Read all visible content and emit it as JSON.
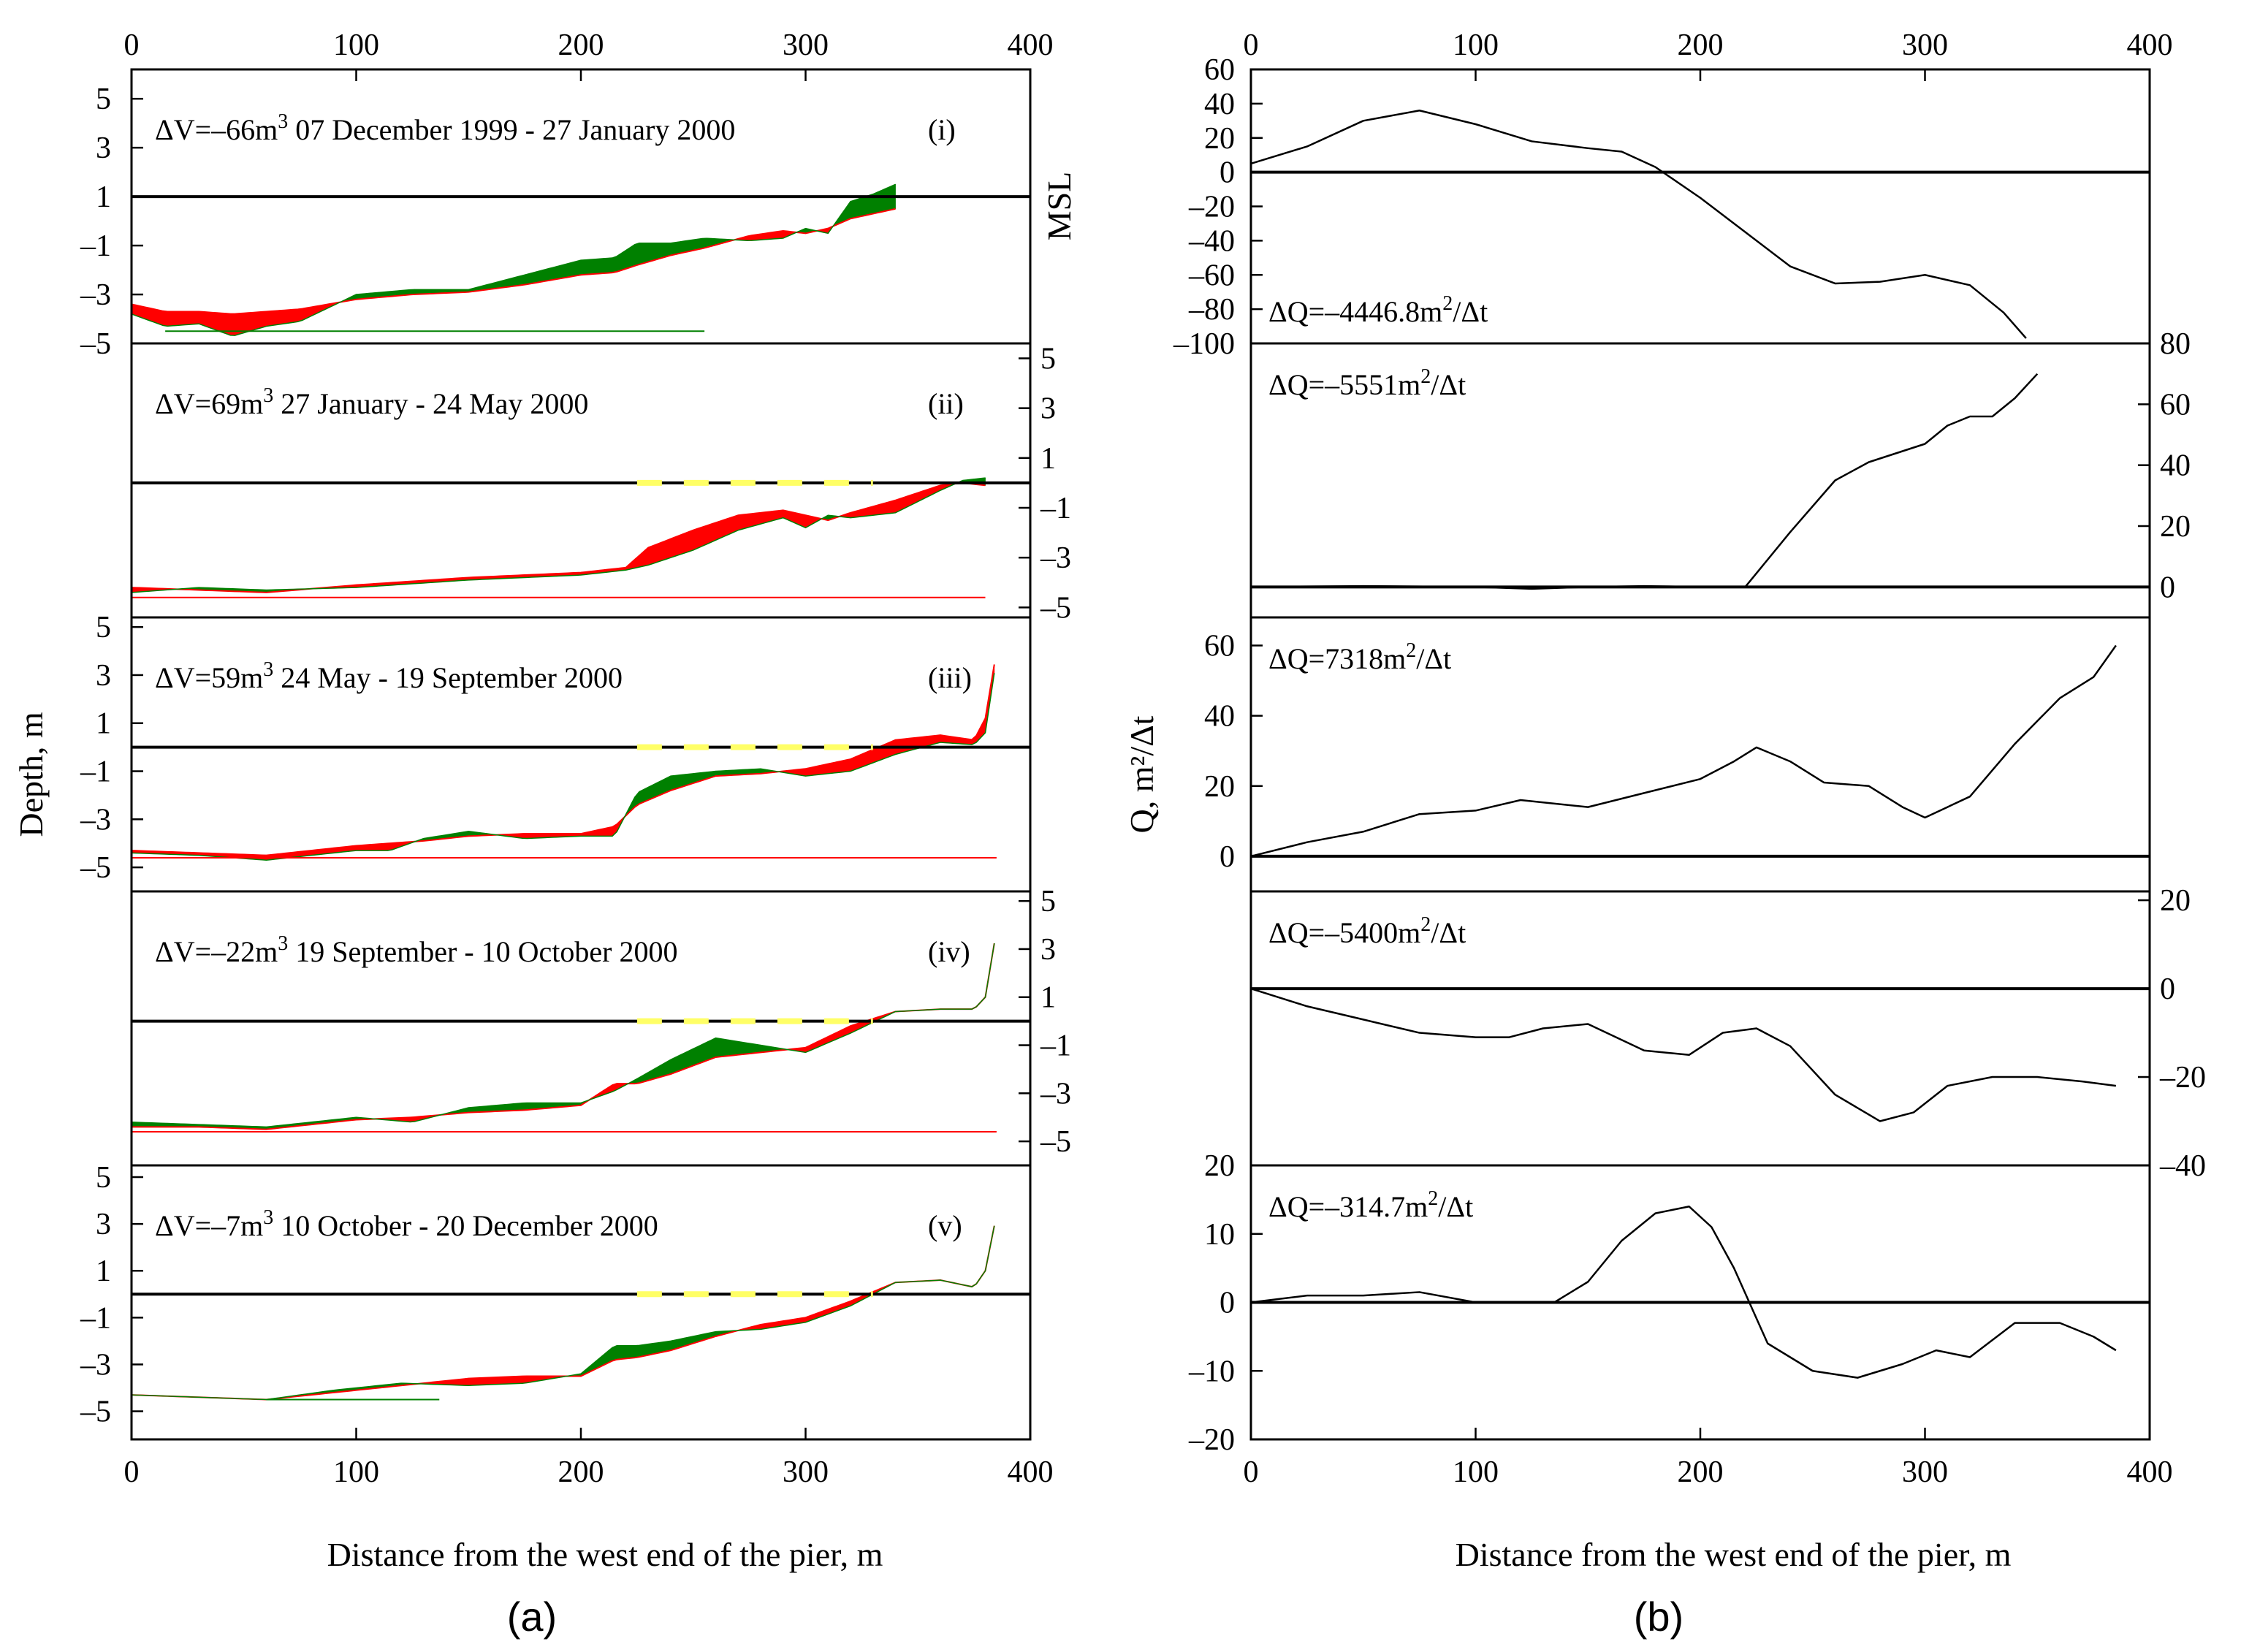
{
  "figure": {
    "label_a": "(a)",
    "label_b": "(b)",
    "xlabel_a": "Distance from the west end of the pier, m",
    "xlabel_b": "Distance from the west end of the pier, m",
    "ylabel_a": "Depth, m",
    "ylabel_b": "Q, m²/Δt",
    "msl_label": "MSL"
  },
  "colors": {
    "erosion": "#ff0000",
    "accretion": "#008000",
    "msl_line": "#000000",
    "dashed": "#ffff66",
    "curve": "#000000"
  },
  "chart_data": [
    {
      "type": "area",
      "title": "",
      "xlabel": "Distance from the west end of the pier, m",
      "ylabel": "Depth, m",
      "xlim": [
        0,
        400
      ],
      "xticks": [
        0,
        100,
        200,
        300,
        400
      ],
      "panels": [
        {
          "roman": "(i)",
          "dv_text": "ΔV=–66m",
          "dv_sup": "3",
          "period": "07 December 1999 - 27 January 2000",
          "ylim": [
            -5,
            6.2
          ],
          "yticks": [
            -5,
            -3,
            -1,
            1,
            3,
            5
          ],
          "ytick_side": "left",
          "msl": 1,
          "baseline": -4.5,
          "baseline_range": [
            15,
            255
          ],
          "baseline_color": "green",
          "profile_x": [
            0,
            15,
            30,
            45,
            60,
            75,
            100,
            125,
            150,
            175,
            200,
            215,
            225,
            240,
            255,
            275,
            290,
            300,
            310,
            320,
            330,
            340
          ],
          "profile_y": [
            -3.4,
            -3.7,
            -3.7,
            -3.8,
            -3.7,
            -3.6,
            -3.2,
            -3.0,
            -2.9,
            -2.6,
            -2.2,
            -2.1,
            -1.8,
            -1.4,
            -1.1,
            -0.6,
            -0.4,
            -0.5,
            -0.3,
            0.1,
            0.3,
            0.5
          ],
          "change": [
            -0.4,
            -0.6,
            -0.5,
            -0.9,
            -0.6,
            -0.5,
            0.2,
            0.2,
            0.1,
            0.4,
            0.6,
            0.6,
            0.9,
            0.5,
            0.4,
            -0.2,
            -0.3,
            0.2,
            -0.2,
            0.7,
            0.8,
            1.0
          ]
        },
        {
          "roman": "(ii)",
          "dv_text": "ΔV=69m",
          "dv_sup": "3",
          "period": "27 January - 24 May 2000",
          "ylim": [
            -5.4,
            5.6
          ],
          "yticks": [
            -5,
            -3,
            -1,
            1,
            3,
            5
          ],
          "ytick_side": "right",
          "msl": 0,
          "baseline": -4.6,
          "baseline_range": [
            0,
            380
          ],
          "baseline_color": "red",
          "dashed_range": [
            225,
            330
          ],
          "profile_x": [
            0,
            30,
            60,
            100,
            150,
            200,
            220,
            230,
            250,
            270,
            290,
            300,
            310,
            320,
            340,
            360,
            370,
            380
          ],
          "profile_y": [
            -4.2,
            -4.3,
            -4.4,
            -4.1,
            -3.8,
            -3.6,
            -3.4,
            -2.6,
            -1.9,
            -1.3,
            -1.1,
            -1.3,
            -1.5,
            -1.2,
            -0.7,
            -0.1,
            0.0,
            -0.1
          ],
          "change": [
            -0.2,
            0.1,
            0.1,
            -0.1,
            -0.1,
            -0.1,
            -0.1,
            -0.7,
            -0.8,
            -0.6,
            -0.3,
            -0.5,
            0.2,
            -0.2,
            -0.5,
            -0.2,
            0.1,
            0.3
          ]
        },
        {
          "roman": "(iii)",
          "dv_text": "ΔV=59m",
          "dv_sup": "3",
          "period": "24 May - 19 September 2000",
          "ylim": [
            -6,
            5.4
          ],
          "yticks": [
            -5,
            -3,
            -1,
            1,
            3,
            5
          ],
          "ytick_side": "left",
          "msl": 0,
          "baseline": -4.6,
          "baseline_range": [
            0,
            385
          ],
          "baseline_color": "red",
          "dashed_range": [
            225,
            330
          ],
          "profile_x": [
            0,
            30,
            60,
            100,
            115,
            130,
            150,
            175,
            200,
            215,
            225,
            240,
            260,
            280,
            300,
            320,
            340,
            360,
            375,
            380,
            385
          ],
          "profile_y": [
            -4.3,
            -4.4,
            -4.5,
            -4.1,
            -4.0,
            -3.9,
            -3.7,
            -3.6,
            -3.6,
            -3.3,
            -2.4,
            -1.8,
            -1.2,
            -1.1,
            -0.9,
            -0.5,
            0.3,
            0.5,
            0.3,
            1.2,
            4.0
          ],
          "change": [
            -0.1,
            -0.1,
            -0.2,
            -0.2,
            -0.3,
            0.1,
            0.2,
            -0.2,
            -0.1,
            -0.4,
            0.5,
            0.6,
            0.2,
            0.2,
            -0.3,
            -0.5,
            -0.6,
            -0.3,
            -0.2,
            -0.6,
            -0.3
          ]
        },
        {
          "roman": "(iv)",
          "dv_text": "ΔV=–22m",
          "dv_sup": "3",
          "period": "19 September - 10 October 2000",
          "ylim": [
            -6,
            5.4
          ],
          "yticks": [
            -5,
            -3,
            -1,
            1,
            3,
            5
          ],
          "ytick_side": "right",
          "msl": 0,
          "baseline": -4.6,
          "baseline_range": [
            0,
            385
          ],
          "baseline_color": "red",
          "dashed_range": [
            225,
            330
          ],
          "profile_x": [
            0,
            30,
            60,
            100,
            125,
            150,
            175,
            200,
            215,
            225,
            240,
            260,
            280,
            300,
            320,
            340,
            360,
            375,
            380,
            385
          ],
          "profile_y": [
            -4.4,
            -4.4,
            -4.5,
            -4.1,
            -4.0,
            -3.8,
            -3.7,
            -3.5,
            -2.6,
            -2.6,
            -2.2,
            -1.5,
            -1.3,
            -1.1,
            -0.2,
            0.4,
            0.5,
            0.5,
            1.0,
            3.8
          ],
          "change": [
            0.2,
            0.1,
            0.1,
            0.1,
            -0.2,
            0.2,
            0.3,
            0.1,
            -0.3,
            0.2,
            0.6,
            0.8,
            0.3,
            -0.2,
            -0.3,
            0.0,
            0.0,
            0.0,
            0.0,
            0.0
          ]
        },
        {
          "roman": "(v)",
          "dv_text": "ΔV=–7m",
          "dv_sup": "3",
          "period": "10 October - 20 December 2000",
          "ylim": [
            -6.2,
            5.5
          ],
          "yticks": [
            -5,
            -3,
            -1,
            1,
            3,
            5
          ],
          "ytick_side": "left",
          "msl": 0,
          "baseline": -4.5,
          "baseline_range": [
            60,
            137
          ],
          "baseline_color": "green",
          "dashed_range": [
            225,
            330
          ],
          "profile_x": [
            0,
            30,
            60,
            90,
            120,
            150,
            175,
            200,
            215,
            225,
            240,
            260,
            280,
            300,
            320,
            340,
            360,
            375,
            380,
            385
          ],
          "profile_y": [
            -4.3,
            -4.4,
            -4.5,
            -4.2,
            -3.9,
            -3.6,
            -3.5,
            -3.5,
            -2.8,
            -2.7,
            -2.4,
            -1.8,
            -1.3,
            -1.0,
            -0.3,
            0.5,
            0.6,
            0.3,
            1.0,
            3.4
          ],
          "change": [
            0.0,
            0.0,
            0.0,
            0.1,
            0.1,
            -0.3,
            -0.3,
            0.1,
            0.6,
            0.5,
            0.4,
            0.2,
            -0.2,
            -0.2,
            -0.2,
            0.0,
            0.0,
            0.0,
            0.0,
            0.0
          ]
        }
      ]
    },
    {
      "type": "line",
      "title": "",
      "xlabel": "Distance from the west end of the pier, m",
      "ylabel": "Q, m²/Δt",
      "xlim": [
        0,
        400
      ],
      "xticks": [
        0,
        100,
        200,
        300,
        400
      ],
      "panels": [
        {
          "dq_text": "ΔQ=–4446.8m",
          "dq_sup": "2",
          "dq_unit": "/Δt",
          "ylim": [
            -100,
            60
          ],
          "yticks": [
            -100,
            -80,
            -60,
            -40,
            -20,
            0,
            20,
            40,
            60
          ],
          "ytick_side": "left",
          "x": [
            0,
            25,
            50,
            75,
            100,
            125,
            150,
            165,
            180,
            200,
            220,
            240,
            260,
            280,
            300,
            320,
            335,
            345
          ],
          "y": [
            5,
            15,
            30,
            36,
            28,
            18,
            14,
            12,
            3,
            -15,
            -35,
            -55,
            -65,
            -64,
            -60,
            -66,
            -82,
            -97
          ]
        },
        {
          "dq_text": "ΔQ=–5551m",
          "dq_sup": "2",
          "dq_unit": "/Δt",
          "ylim": [
            -10,
            80
          ],
          "yticks": [
            0,
            20,
            40,
            60,
            80
          ],
          "ytick_side": "right",
          "x": [
            0,
            50,
            100,
            125,
            150,
            175,
            200,
            220,
            240,
            260,
            275,
            300,
            310,
            320,
            330,
            340,
            350
          ],
          "y": [
            0,
            0.3,
            0,
            -0.6,
            0,
            0.3,
            0,
            0,
            18,
            35,
            41,
            47,
            53,
            56,
            56,
            62,
            70
          ]
        },
        {
          "dq_text": "ΔQ=7318m",
          "dq_sup": "2",
          "dq_unit": "/Δt",
          "ylim": [
            -10,
            68
          ],
          "yticks": [
            0,
            20,
            40,
            60
          ],
          "ytick_side": "left",
          "x": [
            0,
            25,
            50,
            75,
            100,
            120,
            150,
            175,
            200,
            215,
            225,
            240,
            255,
            275,
            290,
            300,
            320,
            340,
            360,
            375,
            385
          ],
          "y": [
            0,
            4,
            7,
            12,
            13,
            16,
            14,
            18,
            22,
            27,
            31,
            27,
            21,
            20,
            14,
            11,
            17,
            32,
            45,
            51,
            60
          ]
        },
        {
          "dq_text": "ΔQ=–5400m",
          "dq_sup": "2",
          "dq_unit": "/Δt",
          "ylim": [
            -40,
            22
          ],
          "yticks": [
            -40,
            -20,
            0,
            20
          ],
          "ytick_side": "right",
          "x": [
            0,
            25,
            50,
            75,
            100,
            115,
            130,
            150,
            175,
            195,
            210,
            225,
            240,
            260,
            280,
            295,
            310,
            330,
            350,
            370,
            385
          ],
          "y": [
            0,
            -4,
            -7,
            -10,
            -11,
            -11,
            -9,
            -8,
            -14,
            -15,
            -10,
            -9,
            -13,
            -24,
            -30,
            -28,
            -22,
            -20,
            -20,
            -21,
            -22
          ]
        },
        {
          "dq_text": "ΔQ=–314.7m",
          "dq_sup": "2",
          "dq_unit": "/Δt",
          "ylim": [
            -20,
            20
          ],
          "yticks": [
            -20,
            -10,
            0,
            10,
            20
          ],
          "ytick_side": "left",
          "x": [
            0,
            25,
            50,
            75,
            100,
            120,
            135,
            150,
            165,
            180,
            195,
            205,
            215,
            230,
            250,
            270,
            290,
            305,
            320,
            340,
            360,
            375,
            385
          ],
          "y": [
            0,
            1,
            1,
            1.5,
            0,
            0,
            0,
            3,
            9,
            13,
            14,
            11,
            5,
            -6,
            -10,
            -11,
            -9,
            -7,
            -8,
            -3,
            -3,
            -5,
            -7
          ]
        }
      ]
    }
  ]
}
